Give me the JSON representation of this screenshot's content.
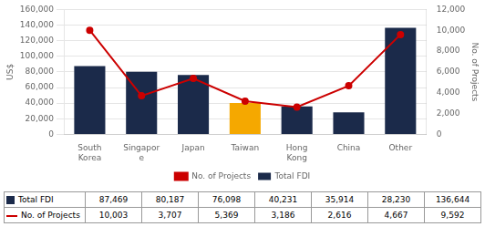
{
  "chart_data": {
    "type": "bar",
    "categories": [
      "South\nKorea",
      "Singapor\ne",
      "Japan",
      "Taiwan",
      "Hong\nKong",
      "China",
      "Other"
    ],
    "series": [
      {
        "name": "Total FDI",
        "type": "bar",
        "color": "#1b2a4a",
        "colors": [
          "#1b2a4a",
          "#1b2a4a",
          "#1b2a4a",
          "#f5a800",
          "#1b2a4a",
          "#1b2a4a",
          "#1b2a4a"
        ],
        "values": [
          87469,
          80187,
          76098,
          40231,
          35914,
          28230,
          136644
        ],
        "value_labels": [
          "87,469",
          "80,187",
          "76,098",
          "40,231",
          "35,914",
          "28,230",
          "136,644"
        ]
      },
      {
        "name": "No. of Projects",
        "type": "line",
        "axis": "y2",
        "color": "#cc0000",
        "marker": "circle",
        "line_style": "solid",
        "values": [
          10003,
          3707,
          5369,
          3186,
          2616,
          4667,
          9592
        ],
        "value_labels": [
          "10,003",
          "3,707",
          "5,369",
          "3,186",
          "2,616",
          "4,667",
          "9,592"
        ]
      }
    ],
    "y_label": "US$",
    "y2_label": "No. of Projects",
    "ylim": [
      0,
      160000
    ],
    "yticks": [
      0,
      {
        "value": 20000,
        "label": "20,000"
      },
      {
        "value": 40000,
        "label": "40,000"
      },
      {
        "value": 60000,
        "label": "60,000"
      },
      {
        "value": 80000,
        "label": "80,000"
      },
      {
        "value": 100000,
        "label": "100,000"
      },
      {
        "value": 120000,
        "label": "120,000"
      },
      {
        "value": 140000,
        "label": "140,000"
      },
      {
        "value": 160000,
        "label": "160,000"
      }
    ],
    "y2lim": [
      0,
      12000
    ],
    "y2ticks": [
      0,
      {
        "value": 2000,
        "label": "2,000"
      },
      {
        "value": 4000,
        "label": "4,000"
      },
      {
        "value": 6000,
        "label": "6,000"
      },
      {
        "value": 8000,
        "label": "8,000"
      },
      {
        "value": 10000,
        "label": "10,000"
      },
      {
        "value": 12000,
        "label": "12,000"
      }
    ],
    "grid": true,
    "legend": "bottom"
  }
}
